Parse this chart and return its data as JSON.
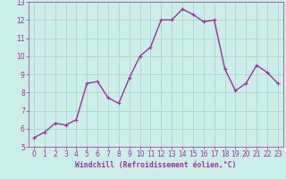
{
  "x": [
    0,
    1,
    2,
    3,
    4,
    5,
    6,
    7,
    8,
    9,
    10,
    11,
    12,
    13,
    14,
    15,
    16,
    17,
    18,
    19,
    20,
    21,
    22,
    23
  ],
  "y": [
    5.5,
    5.8,
    6.3,
    6.2,
    6.5,
    8.5,
    8.6,
    7.7,
    7.4,
    8.8,
    10.0,
    10.5,
    12.0,
    12.0,
    12.6,
    12.3,
    11.9,
    12.0,
    9.3,
    8.1,
    8.5,
    9.5,
    9.1,
    8.5
  ],
  "line_color": "#993399",
  "marker_color": "#993399",
  "bg_color": "#cceee8",
  "plot_bg_color": "#cceee8",
  "grid_color": "#aacccc",
  "xlabel": "Windchill (Refroidissement éolien,°C)",
  "xlim": [
    -0.5,
    23.5
  ],
  "ylim": [
    5,
    13
  ],
  "yticks": [
    5,
    6,
    7,
    8,
    9,
    10,
    11,
    12,
    13
  ],
  "xticks": [
    0,
    1,
    2,
    3,
    4,
    5,
    6,
    7,
    8,
    9,
    10,
    11,
    12,
    13,
    14,
    15,
    16,
    17,
    18,
    19,
    20,
    21,
    22,
    23
  ],
  "line_width": 1.0,
  "marker_size": 2.5,
  "xlabel_color": "#993399",
  "tick_color": "#993399",
  "tick_labelsize": 5.5,
  "xlabel_fontsize": 5.8
}
